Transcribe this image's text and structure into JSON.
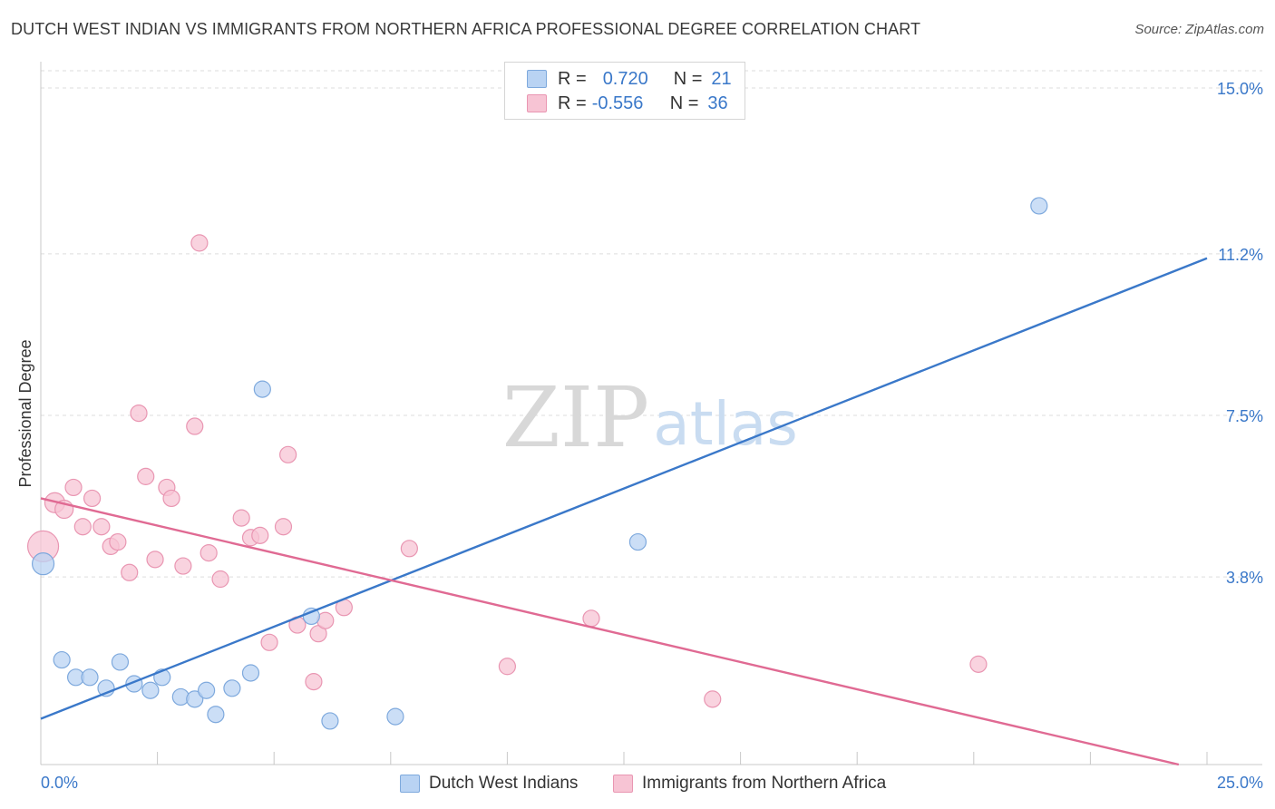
{
  "title": "DUTCH WEST INDIAN VS IMMIGRANTS FROM NORTHERN AFRICA PROFESSIONAL DEGREE CORRELATION CHART",
  "source": "Source: ZipAtlas.com",
  "watermark": {
    "zip": "ZIP",
    "atlas": "atlas"
  },
  "colors": {
    "blue": "#3a78c9",
    "blue_fill": "#b9d3f3",
    "pink": "#e06a93",
    "pink_fill": "#f7c4d4",
    "grid": "#dddddd",
    "tick_label": "#3a78c9"
  },
  "legend": {
    "rows": [
      {
        "r_label": "R =",
        "r_value": "0.720",
        "n_label": "N =",
        "n_value": "21"
      },
      {
        "r_label": "R =",
        "r_value": "-0.556",
        "n_label": "N =",
        "n_value": "36"
      }
    ]
  },
  "bottom_legend": [
    "Dutch West Indians",
    "Immigrants from Northern Africa"
  ],
  "chart_data": {
    "type": "scatter",
    "title": "DUTCH WEST INDIAN VS IMMIGRANTS FROM NORTHERN AFRICA PROFESSIONAL DEGREE CORRELATION CHART",
    "xlabel": "",
    "ylabel": "Professional Degree",
    "xlim": [
      0,
      25
    ],
    "ylim": [
      0,
      15.3
    ],
    "x_tick_labels": [
      "0.0%",
      "25.0%"
    ],
    "y_ticks": [
      3.8,
      7.5,
      11.2,
      15.0
    ],
    "y_tick_labels": [
      "3.8%",
      "7.5%",
      "11.2%",
      "15.0%"
    ],
    "legend_position": "top-center",
    "series": [
      {
        "name": "Dutch West Indians",
        "color": "blue",
        "r": 0.72,
        "n": 21,
        "trend": {
          "x": [
            0,
            25
          ],
          "y": [
            0.55,
            11.1
          ]
        },
        "points": [
          {
            "x": 0.05,
            "y": 4.1,
            "s": 12
          },
          {
            "x": 0.45,
            "y": 1.9,
            "s": 9
          },
          {
            "x": 0.75,
            "y": 1.5,
            "s": 9
          },
          {
            "x": 1.05,
            "y": 1.5,
            "s": 9
          },
          {
            "x": 1.4,
            "y": 1.25,
            "s": 9
          },
          {
            "x": 1.7,
            "y": 1.85,
            "s": 9
          },
          {
            "x": 2.0,
            "y": 1.35,
            "s": 9
          },
          {
            "x": 2.35,
            "y": 1.2,
            "s": 9
          },
          {
            "x": 2.6,
            "y": 1.5,
            "s": 9
          },
          {
            "x": 3.0,
            "y": 1.05,
            "s": 9
          },
          {
            "x": 3.3,
            "y": 1.0,
            "s": 9
          },
          {
            "x": 3.55,
            "y": 1.2,
            "s": 9
          },
          {
            "x": 3.75,
            "y": 0.65,
            "s": 9
          },
          {
            "x": 4.1,
            "y": 1.25,
            "s": 9
          },
          {
            "x": 4.5,
            "y": 1.6,
            "s": 9
          },
          {
            "x": 4.75,
            "y": 8.1,
            "s": 9
          },
          {
            "x": 5.8,
            "y": 2.9,
            "s": 9
          },
          {
            "x": 6.2,
            "y": 0.5,
            "s": 9
          },
          {
            "x": 7.6,
            "y": 0.6,
            "s": 9
          },
          {
            "x": 12.8,
            "y": 4.6,
            "s": 9
          },
          {
            "x": 21.4,
            "y": 12.3,
            "s": 9
          }
        ]
      },
      {
        "name": "Immigrants from Northern Africa",
        "color": "pink",
        "r": -0.556,
        "n": 36,
        "trend": {
          "x": [
            0,
            25
          ],
          "y": [
            5.6,
            -0.65
          ]
        },
        "points": [
          {
            "x": 0.05,
            "y": 4.5,
            "s": 17
          },
          {
            "x": 0.3,
            "y": 5.5,
            "s": 11
          },
          {
            "x": 0.5,
            "y": 5.35,
            "s": 10
          },
          {
            "x": 0.7,
            "y": 5.85,
            "s": 9
          },
          {
            "x": 0.9,
            "y": 4.95,
            "s": 9
          },
          {
            "x": 1.1,
            "y": 5.6,
            "s": 9
          },
          {
            "x": 1.3,
            "y": 4.95,
            "s": 9
          },
          {
            "x": 1.5,
            "y": 4.5,
            "s": 9
          },
          {
            "x": 1.65,
            "y": 4.6,
            "s": 9
          },
          {
            "x": 1.9,
            "y": 3.9,
            "s": 9
          },
          {
            "x": 2.1,
            "y": 7.55,
            "s": 9
          },
          {
            "x": 2.25,
            "y": 6.1,
            "s": 9
          },
          {
            "x": 2.45,
            "y": 4.2,
            "s": 9
          },
          {
            "x": 2.7,
            "y": 5.85,
            "s": 9
          },
          {
            "x": 2.8,
            "y": 5.6,
            "s": 9
          },
          {
            "x": 3.05,
            "y": 4.05,
            "s": 9
          },
          {
            "x": 3.3,
            "y": 7.25,
            "s": 9
          },
          {
            "x": 3.4,
            "y": 11.45,
            "s": 9
          },
          {
            "x": 3.6,
            "y": 4.35,
            "s": 9
          },
          {
            "x": 3.85,
            "y": 3.75,
            "s": 9
          },
          {
            "x": 4.3,
            "y": 5.15,
            "s": 9
          },
          {
            "x": 4.5,
            "y": 4.7,
            "s": 9
          },
          {
            "x": 4.7,
            "y": 4.75,
            "s": 9
          },
          {
            "x": 5.2,
            "y": 4.95,
            "s": 9
          },
          {
            "x": 5.3,
            "y": 6.6,
            "s": 9
          },
          {
            "x": 4.9,
            "y": 2.3,
            "s": 9
          },
          {
            "x": 5.5,
            "y": 2.7,
            "s": 9
          },
          {
            "x": 5.85,
            "y": 1.4,
            "s": 9
          },
          {
            "x": 5.95,
            "y": 2.5,
            "s": 9
          },
          {
            "x": 6.1,
            "y": 2.8,
            "s": 9
          },
          {
            "x": 6.5,
            "y": 3.1,
            "s": 9
          },
          {
            "x": 7.9,
            "y": 4.45,
            "s": 9
          },
          {
            "x": 10.0,
            "y": 1.75,
            "s": 9
          },
          {
            "x": 11.8,
            "y": 2.85,
            "s": 9
          },
          {
            "x": 14.4,
            "y": 1.0,
            "s": 9
          },
          {
            "x": 20.1,
            "y": 1.8,
            "s": 9
          }
        ]
      }
    ]
  }
}
